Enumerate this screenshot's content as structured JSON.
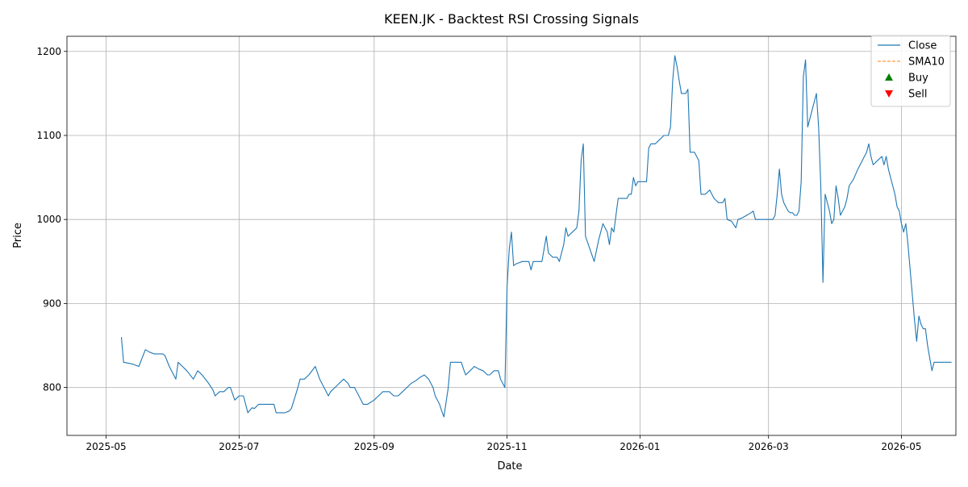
{
  "chart_data": {
    "type": "line",
    "title": "KEEN.JK - Backtest RSI Crossing Signals",
    "xlabel": "Date",
    "ylabel": "Price",
    "xlim": [
      "2025-04-13",
      "2026-05-26"
    ],
    "ylim": [
      743,
      1218
    ],
    "x_ticks": [
      {
        "date": "2025-05-01",
        "label": "2025-05"
      },
      {
        "date": "2025-07-01",
        "label": "2025-07"
      },
      {
        "date": "2025-09-01",
        "label": "2025-09"
      },
      {
        "date": "2025-11-01",
        "label": "2025-11"
      },
      {
        "date": "2026-01-01",
        "label": "2026-01"
      },
      {
        "date": "2026-03-01",
        "label": "2026-03"
      },
      {
        "date": "2026-05-01",
        "label": "2026-05"
      }
    ],
    "y_ticks": [
      800,
      900,
      1000,
      1100,
      1200
    ],
    "grid": true,
    "legend_position": "upper right",
    "legend": [
      {
        "label": "Close",
        "kind": "line",
        "color": "#1f77b4"
      },
      {
        "label": "SMA10",
        "kind": "dashed",
        "color": "#ff7f0e"
      },
      {
        "label": "Buy",
        "kind": "up-triangle",
        "color": "#008000"
      },
      {
        "label": "Sell",
        "kind": "down-triangle",
        "color": "#ff0000"
      }
    ],
    "series": [
      {
        "name": "Close",
        "color": "#1f77b4",
        "points": [
          [
            "2025-05-08",
            860
          ],
          [
            "2025-05-09",
            830
          ],
          [
            "2025-05-13",
            828
          ],
          [
            "2025-05-15",
            826
          ],
          [
            "2025-05-16",
            825
          ],
          [
            "2025-05-19",
            845
          ],
          [
            "2025-05-21",
            842
          ],
          [
            "2025-05-23",
            840
          ],
          [
            "2025-05-27",
            840
          ],
          [
            "2025-05-28",
            838
          ],
          [
            "2025-05-30",
            825
          ],
          [
            "2025-06-02",
            810
          ],
          [
            "2025-06-03",
            830
          ],
          [
            "2025-06-05",
            825
          ],
          [
            "2025-06-07",
            820
          ],
          [
            "2025-06-10",
            810
          ],
          [
            "2025-06-12",
            820
          ],
          [
            "2025-06-14",
            815
          ],
          [
            "2025-06-17",
            805
          ],
          [
            "2025-06-19",
            797
          ],
          [
            "2025-06-20",
            790
          ],
          [
            "2025-06-22",
            795
          ],
          [
            "2025-06-24",
            795
          ],
          [
            "2025-06-26",
            800
          ],
          [
            "2025-06-27",
            800
          ],
          [
            "2025-06-29",
            785
          ],
          [
            "2025-07-01",
            790
          ],
          [
            "2025-07-03",
            790
          ],
          [
            "2025-07-04",
            780
          ],
          [
            "2025-07-05",
            770
          ],
          [
            "2025-07-07",
            776
          ],
          [
            "2025-07-08",
            775
          ],
          [
            "2025-07-10",
            780
          ],
          [
            "2025-07-12",
            780
          ],
          [
            "2025-07-15",
            780
          ],
          [
            "2025-07-17",
            780
          ],
          [
            "2025-07-18",
            770
          ],
          [
            "2025-07-20",
            770
          ],
          [
            "2025-07-22",
            770
          ],
          [
            "2025-07-24",
            772
          ],
          [
            "2025-07-25",
            775
          ],
          [
            "2025-07-28",
            800
          ],
          [
            "2025-07-29",
            810
          ],
          [
            "2025-07-31",
            810
          ],
          [
            "2025-08-02",
            815
          ],
          [
            "2025-08-05",
            825
          ],
          [
            "2025-08-07",
            810
          ],
          [
            "2025-08-09",
            800
          ],
          [
            "2025-08-11",
            790
          ],
          [
            "2025-08-12",
            795
          ],
          [
            "2025-08-14",
            800
          ],
          [
            "2025-08-16",
            805
          ],
          [
            "2025-08-18",
            810
          ],
          [
            "2025-08-20",
            805
          ],
          [
            "2025-08-21",
            800
          ],
          [
            "2025-08-23",
            800
          ],
          [
            "2025-08-25",
            790
          ],
          [
            "2025-08-27",
            780
          ],
          [
            "2025-08-29",
            780
          ],
          [
            "2025-09-01",
            785
          ],
          [
            "2025-09-03",
            790
          ],
          [
            "2025-09-05",
            795
          ],
          [
            "2025-09-08",
            795
          ],
          [
            "2025-09-10",
            790
          ],
          [
            "2025-09-12",
            790
          ],
          [
            "2025-09-14",
            795
          ],
          [
            "2025-09-16",
            800
          ],
          [
            "2025-09-18",
            805
          ],
          [
            "2025-09-20",
            808
          ],
          [
            "2025-09-22",
            812
          ],
          [
            "2025-09-24",
            815
          ],
          [
            "2025-09-26",
            810
          ],
          [
            "2025-09-28",
            800
          ],
          [
            "2025-09-29",
            790
          ],
          [
            "2025-10-01",
            780
          ],
          [
            "2025-10-02",
            772
          ],
          [
            "2025-10-03",
            765
          ],
          [
            "2025-10-05",
            800
          ],
          [
            "2025-10-06",
            830
          ],
          [
            "2025-10-09",
            830
          ],
          [
            "2025-10-10",
            830
          ],
          [
            "2025-10-11",
            830
          ],
          [
            "2025-10-12",
            822
          ],
          [
            "2025-10-13",
            815
          ],
          [
            "2025-10-15",
            820
          ],
          [
            "2025-10-17",
            825
          ],
          [
            "2025-10-19",
            822
          ],
          [
            "2025-10-21",
            820
          ],
          [
            "2025-10-23",
            815
          ],
          [
            "2025-10-24",
            815
          ],
          [
            "2025-10-26",
            820
          ],
          [
            "2025-10-28",
            820
          ],
          [
            "2025-10-29",
            810
          ],
          [
            "2025-10-31",
            800
          ],
          [
            "2025-11-01",
            920
          ],
          [
            "2025-11-02",
            965
          ],
          [
            "2025-11-03",
            985
          ],
          [
            "2025-11-04",
            945
          ],
          [
            "2025-11-05",
            947
          ],
          [
            "2025-11-08",
            950
          ],
          [
            "2025-11-11",
            950
          ],
          [
            "2025-11-12",
            940
          ],
          [
            "2025-11-13",
            950
          ],
          [
            "2025-11-15",
            950
          ],
          [
            "2025-11-17",
            950
          ],
          [
            "2025-11-19",
            980
          ],
          [
            "2025-11-20",
            960
          ],
          [
            "2025-11-22",
            955
          ],
          [
            "2025-11-24",
            955
          ],
          [
            "2025-11-25",
            950
          ],
          [
            "2025-11-27",
            970
          ],
          [
            "2025-11-28",
            990
          ],
          [
            "2025-11-29",
            980
          ],
          [
            "2025-12-01",
            985
          ],
          [
            "2025-12-03",
            990
          ],
          [
            "2025-12-04",
            1010
          ],
          [
            "2025-12-05",
            1070
          ],
          [
            "2025-12-06",
            1090
          ],
          [
            "2025-12-07",
            980
          ],
          [
            "2025-12-09",
            965
          ],
          [
            "2025-12-11",
            950
          ],
          [
            "2025-12-13",
            975
          ],
          [
            "2025-12-15",
            995
          ],
          [
            "2025-12-17",
            985
          ],
          [
            "2025-12-18",
            970
          ],
          [
            "2025-12-19",
            990
          ],
          [
            "2025-12-20",
            985
          ],
          [
            "2025-12-22",
            1025
          ],
          [
            "2025-12-24",
            1025
          ],
          [
            "2025-12-26",
            1025
          ],
          [
            "2025-12-27",
            1030
          ],
          [
            "2025-12-28",
            1030
          ],
          [
            "2025-12-29",
            1050
          ],
          [
            "2025-12-30",
            1040
          ],
          [
            "2025-12-31",
            1045
          ],
          [
            "2026-01-01",
            1045
          ],
          [
            "2026-01-02",
            1045
          ],
          [
            "2026-01-04",
            1045
          ],
          [
            "2026-01-05",
            1085
          ],
          [
            "2026-01-06",
            1090
          ],
          [
            "2026-01-08",
            1090
          ],
          [
            "2026-01-10",
            1095
          ],
          [
            "2026-01-12",
            1100
          ],
          [
            "2026-01-14",
            1100
          ],
          [
            "2026-01-15",
            1110
          ],
          [
            "2026-01-16",
            1165
          ],
          [
            "2026-01-17",
            1195
          ],
          [
            "2026-01-18",
            1182
          ],
          [
            "2026-01-19",
            1165
          ],
          [
            "2026-01-20",
            1150
          ],
          [
            "2026-01-22",
            1150
          ],
          [
            "2026-01-23",
            1155
          ],
          [
            "2026-01-24",
            1080
          ],
          [
            "2026-01-25",
            1080
          ],
          [
            "2026-01-26",
            1080
          ],
          [
            "2026-01-27",
            1075
          ],
          [
            "2026-01-28",
            1070
          ],
          [
            "2026-01-29",
            1030
          ],
          [
            "2026-01-31",
            1030
          ],
          [
            "2026-02-02",
            1035
          ],
          [
            "2026-02-03",
            1030
          ],
          [
            "2026-02-04",
            1025
          ],
          [
            "2026-02-06",
            1020
          ],
          [
            "2026-02-08",
            1020
          ],
          [
            "2026-02-09",
            1025
          ],
          [
            "2026-02-10",
            1000
          ],
          [
            "2026-02-12",
            998
          ],
          [
            "2026-02-14",
            990
          ],
          [
            "2026-02-15",
            1000
          ],
          [
            "2026-02-17",
            1002
          ],
          [
            "2026-02-19",
            1005
          ],
          [
            "2026-02-21",
            1008
          ],
          [
            "2026-02-22",
            1010
          ],
          [
            "2026-02-23",
            1000
          ],
          [
            "2026-02-25",
            1000
          ],
          [
            "2026-02-27",
            1000
          ],
          [
            "2026-03-01",
            1000
          ],
          [
            "2026-03-03",
            1000
          ],
          [
            "2026-03-04",
            1005
          ],
          [
            "2026-03-05",
            1030
          ],
          [
            "2026-03-06",
            1060
          ],
          [
            "2026-03-07",
            1030
          ],
          [
            "2026-03-08",
            1020
          ],
          [
            "2026-03-10",
            1010
          ],
          [
            "2026-03-11",
            1008
          ],
          [
            "2026-03-12",
            1008
          ],
          [
            "2026-03-13",
            1005
          ],
          [
            "2026-03-14",
            1005
          ],
          [
            "2026-03-15",
            1010
          ],
          [
            "2026-03-16",
            1045
          ],
          [
            "2026-03-17",
            1170
          ],
          [
            "2026-03-18",
            1190
          ],
          [
            "2026-03-19",
            1110
          ],
          [
            "2026-03-21",
            1130
          ],
          [
            "2026-03-23",
            1150
          ],
          [
            "2026-03-24",
            1110
          ],
          [
            "2026-03-25",
            1040
          ],
          [
            "2026-03-26",
            925
          ],
          [
            "2026-03-27",
            1030
          ],
          [
            "2026-03-29",
            1010
          ],
          [
            "2026-03-30",
            995
          ],
          [
            "2026-03-31",
            1000
          ],
          [
            "2026-04-01",
            1040
          ],
          [
            "2026-04-02",
            1025
          ],
          [
            "2026-04-03",
            1005
          ],
          [
            "2026-04-04",
            1010
          ],
          [
            "2026-04-05",
            1015
          ],
          [
            "2026-04-06",
            1025
          ],
          [
            "2026-04-07",
            1040
          ],
          [
            "2026-04-09",
            1048
          ],
          [
            "2026-04-11",
            1060
          ],
          [
            "2026-04-13",
            1070
          ],
          [
            "2026-04-15",
            1080
          ],
          [
            "2026-04-16",
            1090
          ],
          [
            "2026-04-17",
            1075
          ],
          [
            "2026-04-18",
            1065
          ],
          [
            "2026-04-20",
            1070
          ],
          [
            "2026-04-22",
            1075
          ],
          [
            "2026-04-23",
            1065
          ],
          [
            "2026-04-24",
            1075
          ],
          [
            "2026-04-25",
            1060
          ],
          [
            "2026-04-26",
            1050
          ],
          [
            "2026-04-28",
            1030
          ],
          [
            "2026-04-29",
            1015
          ],
          [
            "2026-04-30",
            1010
          ],
          [
            "2026-05-01",
            995
          ],
          [
            "2026-05-02",
            985
          ],
          [
            "2026-05-03",
            995
          ],
          [
            "2026-05-04",
            970
          ],
          [
            "2026-05-05",
            940
          ],
          [
            "2026-05-06",
            910
          ],
          [
            "2026-05-07",
            880
          ],
          [
            "2026-05-08",
            855
          ],
          [
            "2026-05-09",
            885
          ],
          [
            "2026-05-10",
            875
          ],
          [
            "2026-05-11",
            870
          ],
          [
            "2026-05-12",
            870
          ],
          [
            "2026-05-13",
            850
          ],
          [
            "2026-05-14",
            835
          ],
          [
            "2026-05-15",
            820
          ],
          [
            "2026-05-16",
            830
          ],
          [
            "2026-05-17",
            830
          ],
          [
            "2026-05-19",
            830
          ],
          [
            "2026-05-21",
            830
          ],
          [
            "2026-05-23",
            830
          ],
          [
            "2026-05-24",
            830
          ]
        ]
      }
    ],
    "signals": [],
    "annotations": []
  }
}
